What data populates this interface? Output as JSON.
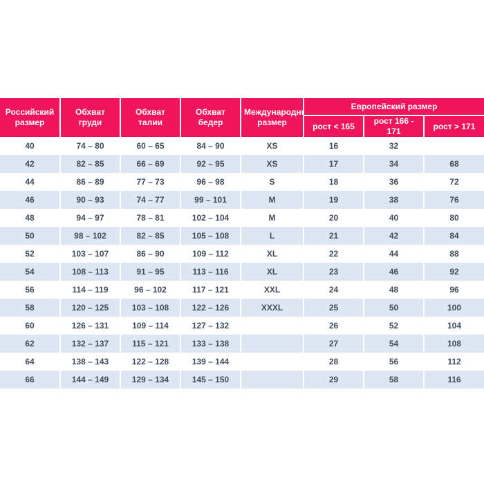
{
  "colors": {
    "accent": "#f0145a",
    "stripe": "#dce7f3",
    "text": "#3f4c5b",
    "header_text": "#ffffff"
  },
  "table": {
    "headers": {
      "russian_size": "Российский размер",
      "chest": "Обхват груди",
      "waist": "Обхват талии",
      "hips": "Обхват бедер",
      "international": "Международный размер",
      "european_group": "Европейский размер",
      "height_lt_165": "рост < 165",
      "height_166_171": "рост 166 - 171",
      "height_gt_171": "рост > 171"
    },
    "rows": [
      [
        "40",
        "74 – 80",
        "60 – 65",
        "84 – 90",
        "XS",
        "16",
        "32",
        ""
      ],
      [
        "42",
        "82 – 85",
        "66 – 69",
        "92 – 95",
        "XS",
        "17",
        "34",
        "68"
      ],
      [
        "44",
        "86 – 89",
        "77 – 73",
        "96 – 98",
        "S",
        "18",
        "36",
        "72"
      ],
      [
        "46",
        "90 – 93",
        "74 – 77",
        "99 – 101",
        "M",
        "19",
        "38",
        "76"
      ],
      [
        "48",
        "94 – 97",
        "78 – 81",
        "102 – 104",
        "M",
        "20",
        "40",
        "80"
      ],
      [
        "50",
        "98 – 102",
        "82 – 85",
        "105 – 108",
        "L",
        "21",
        "42",
        "84"
      ],
      [
        "52",
        "103 – 107",
        "86 – 90",
        "109 – 112",
        "XL",
        "22",
        "44",
        "88"
      ],
      [
        "54",
        "108 – 113",
        "91 – 95",
        "113 – 116",
        "XL",
        "23",
        "46",
        "92"
      ],
      [
        "56",
        "114 – 119",
        "96 – 102",
        "117 – 121",
        "XXL",
        "24",
        "48",
        "96"
      ],
      [
        "58",
        "120 – 125",
        "103 – 108",
        "122 – 126",
        "XXXL",
        "25",
        "50",
        "100"
      ],
      [
        "60",
        "126 – 131",
        "109 – 114",
        "127 – 132",
        "",
        "26",
        "52",
        "104"
      ],
      [
        "62",
        "132 – 137",
        "115 – 121",
        "133 – 138",
        "",
        "27",
        "54",
        "108"
      ],
      [
        "64",
        "138 – 143",
        "122 – 128",
        "139 – 144",
        "",
        "28",
        "56",
        "112"
      ],
      [
        "66",
        "144 – 149",
        "129 – 134",
        "145 – 150",
        "",
        "29",
        "58",
        "116"
      ]
    ]
  }
}
